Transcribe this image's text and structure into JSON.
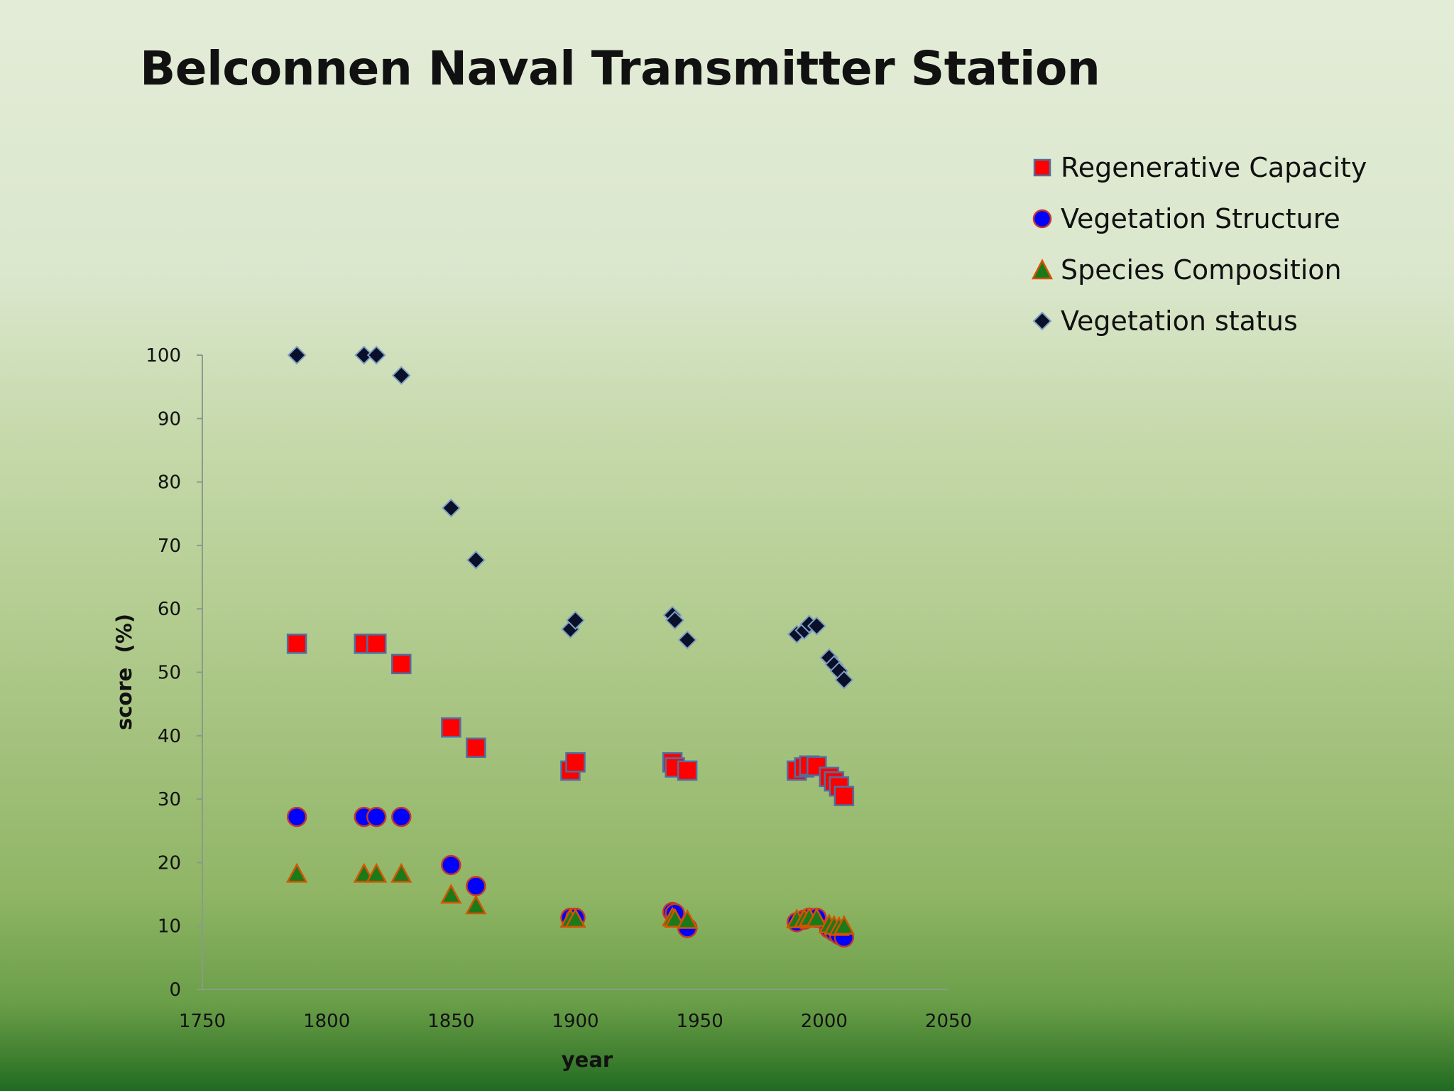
{
  "slide": {
    "title": "Belconnen Naval Transmitter Station"
  },
  "colors": {
    "regenerative_fill": "#ff0000",
    "regenerative_stroke": "#4f6fa0",
    "structure_fill": "#0000ff",
    "structure_stroke": "#c0392b",
    "composition_fill": "#1a7a1a",
    "composition_stroke": "#d35400",
    "status_fill": "#0a0f2a",
    "status_stroke": "#7f9fc0"
  },
  "chart_data": {
    "type": "scatter",
    "xlabel": "year",
    "ylabel": "score  (%)",
    "xlim": [
      1750,
      2050
    ],
    "ylim": [
      0,
      100
    ],
    "xticks": [
      1750,
      1800,
      1850,
      1900,
      1950,
      2000,
      2050
    ],
    "yticks": [
      0,
      10,
      20,
      30,
      40,
      50,
      60,
      70,
      80,
      90,
      100
    ],
    "grid": false,
    "legend_position": "top-right",
    "series": [
      {
        "name": "Regenerative Capacity",
        "marker": "square",
        "points": [
          [
            1788,
            54.5
          ],
          [
            1815,
            54.5
          ],
          [
            1820,
            54.5
          ],
          [
            1830,
            51.3
          ],
          [
            1850,
            41.3
          ],
          [
            1860,
            38.1
          ],
          [
            1898,
            34.5
          ],
          [
            1900,
            35.8
          ],
          [
            1939,
            35.8
          ],
          [
            1940,
            35.0
          ],
          [
            1945,
            34.5
          ],
          [
            1989,
            34.5
          ],
          [
            1992,
            35.0
          ],
          [
            1994,
            35.3
          ],
          [
            1997,
            35.2
          ],
          [
            2002,
            33.5
          ],
          [
            2004,
            32.8
          ],
          [
            2006,
            32.0
          ],
          [
            2008,
            30.5
          ]
        ]
      },
      {
        "name": "Vegetation Structure",
        "marker": "circle",
        "points": [
          [
            1788,
            27.2
          ],
          [
            1815,
            27.2
          ],
          [
            1820,
            27.2
          ],
          [
            1830,
            27.2
          ],
          [
            1850,
            19.6
          ],
          [
            1860,
            16.3
          ],
          [
            1898,
            11.3
          ],
          [
            1900,
            11.3
          ],
          [
            1939,
            12.2
          ],
          [
            1940,
            12.0
          ],
          [
            1945,
            9.7
          ],
          [
            1989,
            10.6
          ],
          [
            1992,
            11.0
          ],
          [
            1994,
            11.3
          ],
          [
            1997,
            11.3
          ],
          [
            2002,
            9.6
          ],
          [
            2004,
            9.1
          ],
          [
            2006,
            8.6
          ],
          [
            2008,
            8.2
          ]
        ]
      },
      {
        "name": "Species Composition",
        "marker": "triangle",
        "points": [
          [
            1788,
            18.1
          ],
          [
            1815,
            18.1
          ],
          [
            1820,
            18.1
          ],
          [
            1830,
            18.1
          ],
          [
            1850,
            14.8
          ],
          [
            1860,
            13.1
          ],
          [
            1898,
            11.0
          ],
          [
            1900,
            11.0
          ],
          [
            1939,
            11.2
          ],
          [
            1940,
            11.0
          ],
          [
            1945,
            10.8
          ],
          [
            1989,
            10.9
          ],
          [
            1992,
            11.0
          ],
          [
            1994,
            11.2
          ],
          [
            1997,
            11.1
          ],
          [
            2002,
            10.1
          ],
          [
            2004,
            9.9
          ],
          [
            2006,
            9.7
          ],
          [
            2008,
            9.9
          ]
        ]
      },
      {
        "name": "Vegetation status",
        "marker": "diamond",
        "points": [
          [
            1788,
            100
          ],
          [
            1815,
            100
          ],
          [
            1820,
            100
          ],
          [
            1830,
            96.8
          ],
          [
            1850,
            75.9
          ],
          [
            1860,
            67.7
          ],
          [
            1898,
            56.8
          ],
          [
            1900,
            58.2
          ],
          [
            1939,
            59.0
          ],
          [
            1940,
            58.2
          ],
          [
            1945,
            55.1
          ],
          [
            1989,
            56.0
          ],
          [
            1992,
            56.6
          ],
          [
            1994,
            57.6
          ],
          [
            1997,
            57.3
          ],
          [
            2002,
            52.3
          ],
          [
            2004,
            51.2
          ],
          [
            2006,
            50.2
          ],
          [
            2008,
            48.8
          ]
        ]
      }
    ]
  }
}
